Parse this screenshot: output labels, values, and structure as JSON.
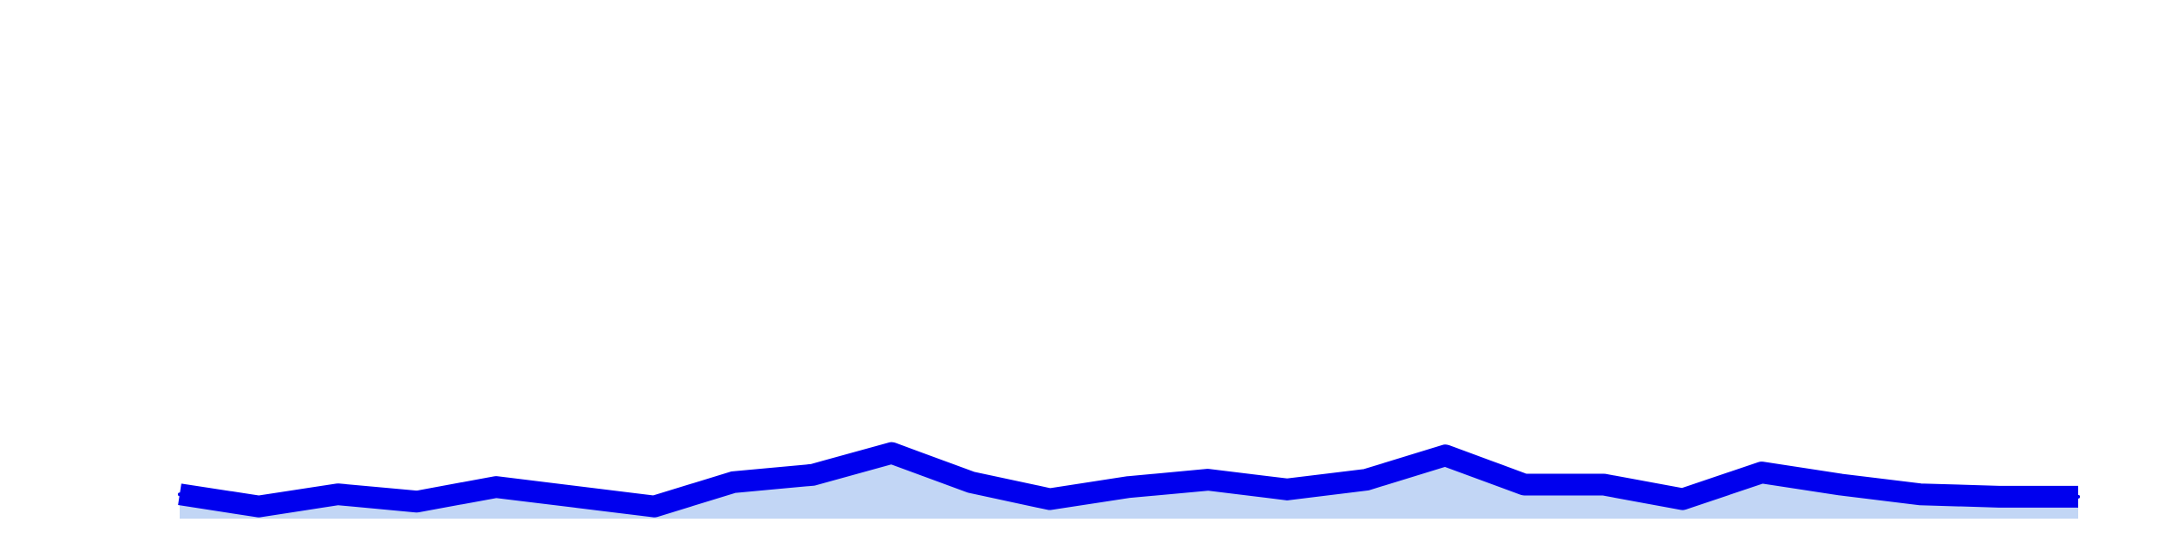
{
  "chart_data": {
    "type": "area",
    "title": "",
    "xlabel": "",
    "ylabel": "",
    "x": [
      1,
      2,
      3,
      4,
      5,
      6,
      7,
      8,
      9,
      10,
      11,
      12,
      13,
      14,
      15,
      16,
      17,
      18,
      19,
      20,
      21,
      22,
      23,
      24,
      25
    ],
    "series": [
      {
        "values": [
          5,
          2.5,
          5,
          3.5,
          6.5,
          4.5,
          2.5,
          7.5,
          9,
          13.5,
          7.5,
          4,
          6.5,
          8,
          6,
          8,
          13,
          7,
          7,
          4,
          9.5,
          7,
          5,
          4.5,
          4.5
        ],
        "color": "#0000ee",
        "fill": "#c2d6f5"
      }
    ],
    "ylim": [
      0,
      100
    ],
    "grid": false,
    "legend": "none",
    "colors": {
      "line": "#0000ee",
      "area": "#c2d6f5",
      "background": "#ffffff"
    }
  }
}
